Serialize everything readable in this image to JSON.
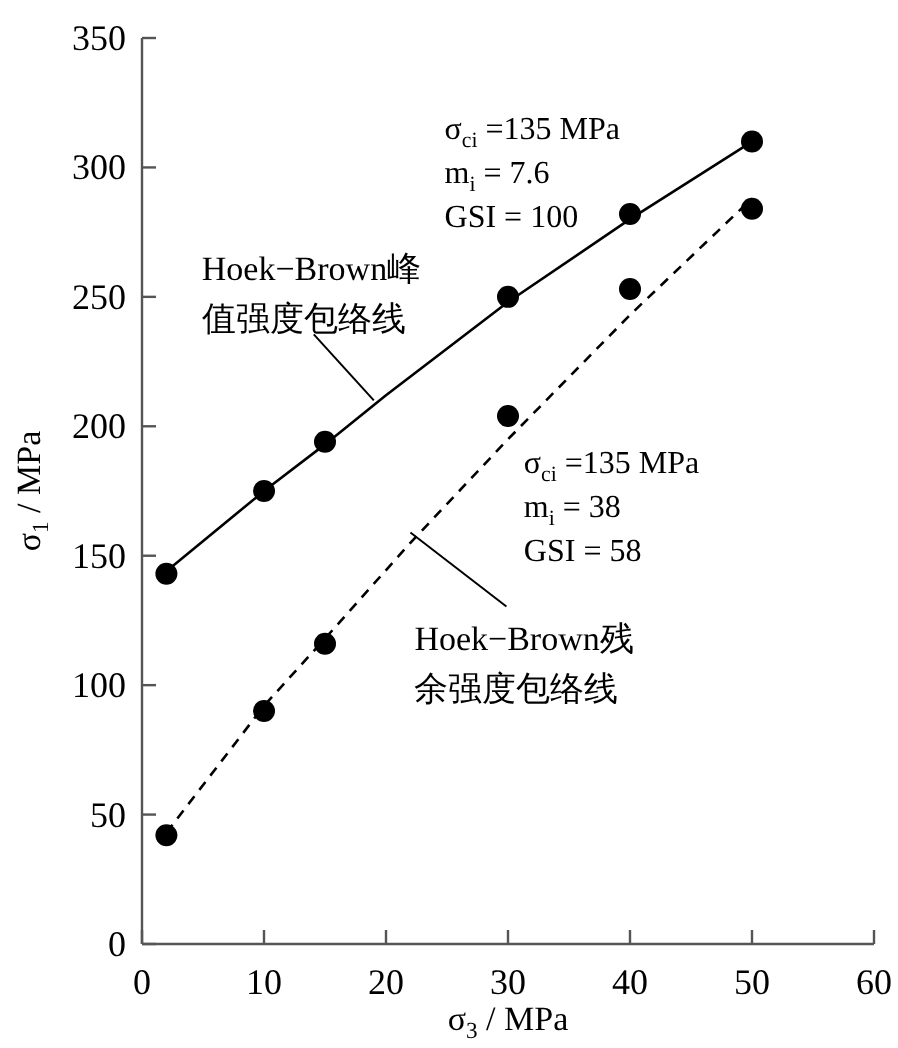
{
  "chart_data": {
    "type": "scatter",
    "xlabel": "σ$_{3}$ / MPa",
    "ylabel": "σ$_{1}$ / MPa",
    "xlim": [
      0,
      60
    ],
    "xticks": [
      0,
      10,
      20,
      30,
      40,
      50,
      60
    ],
    "ylim": [
      0,
      350
    ],
    "yticks": [
      0,
      50,
      100,
      150,
      200,
      250,
      300,
      350
    ],
    "grid": false,
    "marker": "circle",
    "series": [
      {
        "color": "#000000",
        "x": [
          2,
          10,
          15,
          30,
          40,
          50
        ],
        "values": [
          143,
          175,
          194,
          250,
          282,
          310
        ]
      },
      {
        "type": "line",
        "line_style": "solid",
        "marker": "none",
        "color": "#000000",
        "x": [
          2,
          10,
          15,
          20,
          30,
          40,
          50
        ],
        "values": [
          144,
          175,
          193,
          212,
          248,
          280,
          310
        ]
      },
      {
        "color": "#000000",
        "x": [
          2,
          10,
          15,
          30,
          40,
          50
        ],
        "values": [
          42,
          90,
          116,
          204,
          253,
          284
        ]
      },
      {
        "type": "line",
        "line_style": "dashed",
        "marker": "none",
        "color": "#000000",
        "x": [
          2,
          10,
          15,
          22,
          30,
          40,
          50
        ],
        "values": [
          43,
          92,
          118,
          155,
          195,
          243,
          288
        ]
      }
    ],
    "annotations": [
      "σ$_{ci}$ =135 MPa\nm$_{i}$ = 7.6\nGSI = 100",
      {
        "text": "Hoek−Brown峰值强度包络线",
        "x": 19,
        "y": 210
      },
      "σ$_{ci}$ =135 MPa\nm$_{i}$ = 38\nGSI = 58",
      {
        "text": "Hoek−Brown残余强度包络线",
        "x": 22,
        "y": 159
      }
    ]
  }
}
